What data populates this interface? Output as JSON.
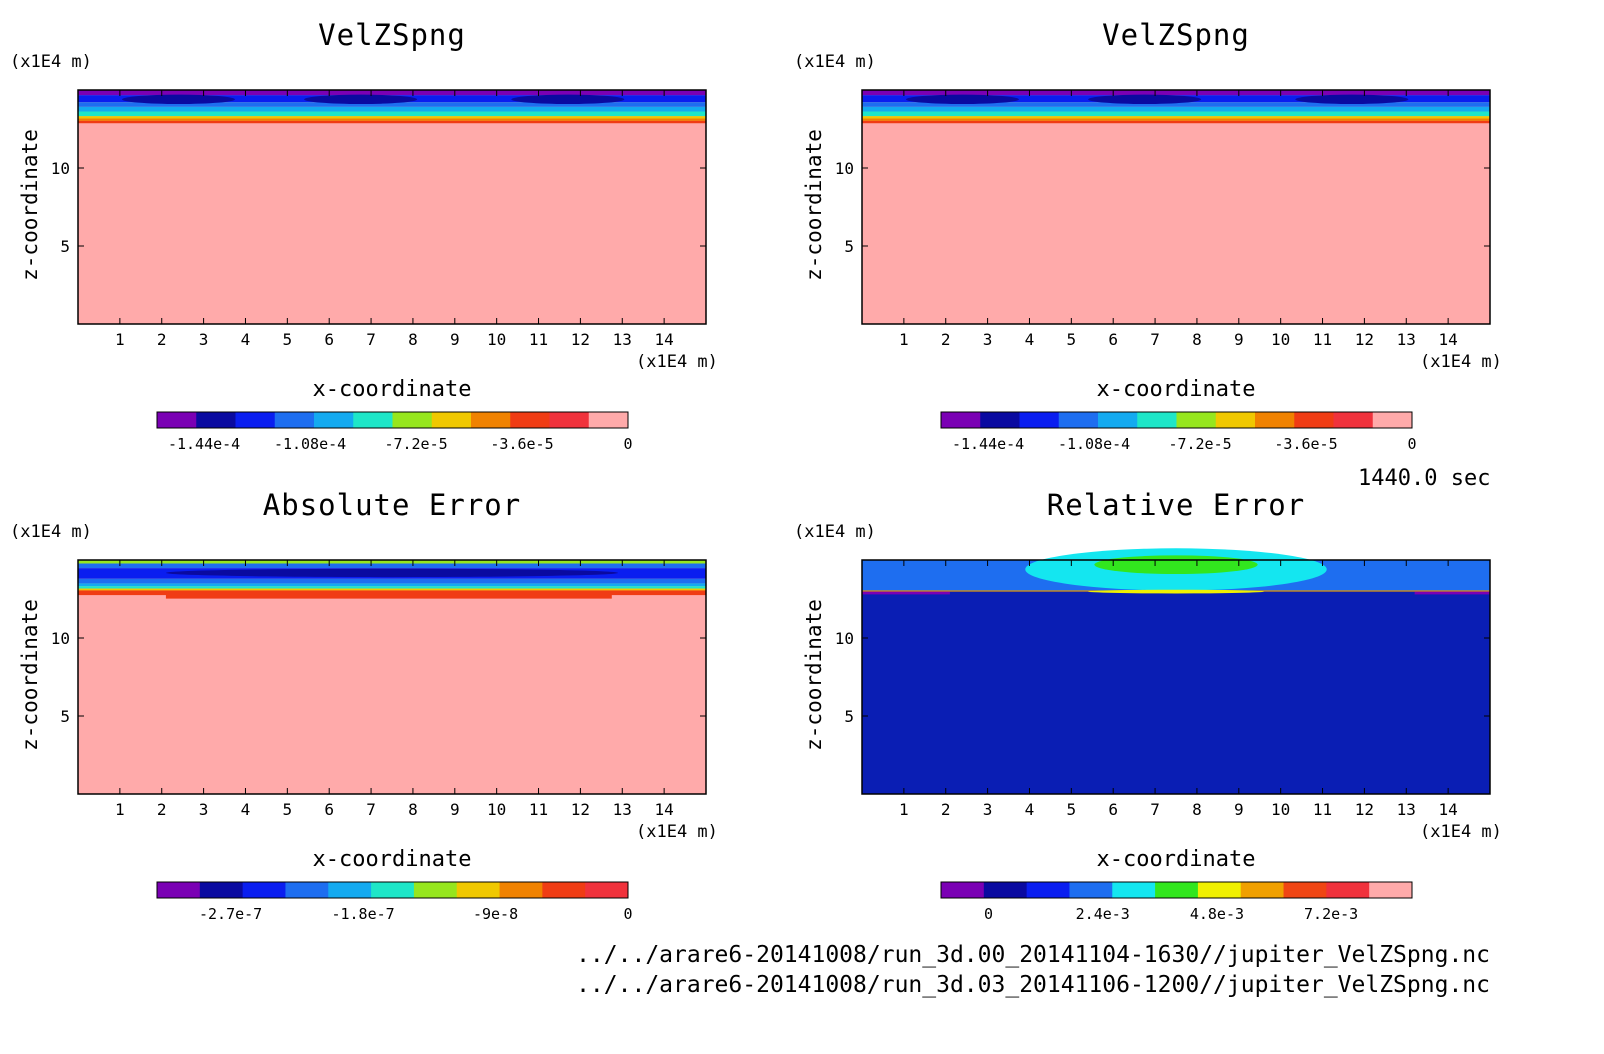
{
  "time_label": "1440.0 sec",
  "file_paths": [
    "../../arare6-20141008/run_3d.00_20141104-1630//jupiter_VelZSpng.nc",
    "../../arare6-20141008/run_3d.03_20141106-1200//jupiter_VelZSpng.nc"
  ],
  "chart_data": [
    {
      "type": "heatmap",
      "title": "VelZSpng",
      "xlabel": "x-coordinate",
      "ylabel": "z-coordinate",
      "x_unit": "(x1E4 m)",
      "y_unit": "(x1E4 m)",
      "xlim": [
        0,
        15
      ],
      "ylim": [
        0,
        15
      ],
      "x_ticks": [
        1,
        2,
        3,
        4,
        5,
        6,
        7,
        8,
        9,
        10,
        11,
        12,
        13,
        14
      ],
      "y_ticks": [
        5,
        10
      ],
      "colorbar": {
        "colors": [
          "#7a00b4",
          "#0a0aa0",
          "#0a1ef0",
          "#1e6ef0",
          "#14aaf0",
          "#1ee6c8",
          "#96e61e",
          "#f0c800",
          "#f08200",
          "#f03c14",
          "#f0323c",
          "#ffaaaa"
        ],
        "tick_labels": [
          "-1.44e-4",
          "-1.08e-4",
          "-7.2e-5",
          "-3.6e-5",
          "0"
        ],
        "tick_values": [
          -0.000144,
          -0.000108,
          -7.2e-05,
          -3.6e-05,
          0
        ],
        "range": [
          -0.00016,
          0
        ]
      },
      "background_color": "#ffaaaa"
    },
    {
      "type": "heatmap",
      "title": "VelZSpng",
      "xlabel": "x-coordinate",
      "ylabel": "z-coordinate",
      "x_unit": "(x1E4 m)",
      "y_unit": "(x1E4 m)",
      "xlim": [
        0,
        15
      ],
      "ylim": [
        0,
        15
      ],
      "x_ticks": [
        1,
        2,
        3,
        4,
        5,
        6,
        7,
        8,
        9,
        10,
        11,
        12,
        13,
        14
      ],
      "y_ticks": [
        5,
        10
      ],
      "colorbar": {
        "colors": [
          "#7a00b4",
          "#0a0aa0",
          "#0a1ef0",
          "#1e6ef0",
          "#14aaf0",
          "#1ee6c8",
          "#96e61e",
          "#f0c800",
          "#f08200",
          "#f03c14",
          "#f0323c",
          "#ffaaaa"
        ],
        "tick_labels": [
          "-1.44e-4",
          "-1.08e-4",
          "-7.2e-5",
          "-3.6e-5",
          "0"
        ],
        "tick_values": [
          -0.000144,
          -0.000108,
          -7.2e-05,
          -3.6e-05,
          0
        ],
        "range": [
          -0.00016,
          0
        ]
      },
      "background_color": "#ffaaaa"
    },
    {
      "type": "heatmap",
      "title": "Absolute Error",
      "xlabel": "x-coordinate",
      "ylabel": "z-coordinate",
      "x_unit": "(x1E4 m)",
      "y_unit": "(x1E4 m)",
      "xlim": [
        0,
        15
      ],
      "ylim": [
        0,
        15
      ],
      "x_ticks": [
        1,
        2,
        3,
        4,
        5,
        6,
        7,
        8,
        9,
        10,
        11,
        12,
        13,
        14
      ],
      "y_ticks": [
        5,
        10
      ],
      "colorbar": {
        "colors": [
          "#7a00b4",
          "#0a0aa0",
          "#0a1ef0",
          "#1e6ef0",
          "#14aaf0",
          "#1ee6c8",
          "#96e61e",
          "#f0c800",
          "#f08200",
          "#f03c14",
          "#f0323c"
        ],
        "tick_labels": [
          "-2.7e-7",
          "-1.8e-7",
          "-9e-8",
          "0"
        ],
        "tick_values": [
          -2.7e-07,
          -1.8e-07,
          -9e-08,
          0
        ],
        "range": [
          -3.2e-07,
          0
        ]
      },
      "background_color": "#ffaaaa"
    },
    {
      "type": "heatmap",
      "title": "Relative Error",
      "xlabel": "x-coordinate",
      "ylabel": "z-coordinate",
      "x_unit": "(x1E4 m)",
      "y_unit": "(x1E4 m)",
      "xlim": [
        0,
        15
      ],
      "ylim": [
        0,
        15
      ],
      "x_ticks": [
        1,
        2,
        3,
        4,
        5,
        6,
        7,
        8,
        9,
        10,
        11,
        12,
        13,
        14
      ],
      "y_ticks": [
        5,
        10
      ],
      "colorbar": {
        "colors": [
          "#7a00b4",
          "#0a0aa0",
          "#0a1ef0",
          "#1e6ef0",
          "#14e6f0",
          "#32e61e",
          "#f0f000",
          "#f0a000",
          "#f04614",
          "#f0323c",
          "#ffaaaa"
        ],
        "tick_labels": [
          "0",
          "2.4e-3",
          "4.8e-3",
          "7.2e-3"
        ],
        "tick_values": [
          0,
          0.0024,
          0.0048,
          0.0072
        ],
        "range": [
          -0.001,
          0.0089
        ]
      },
      "background_color": "#0a1eb4"
    }
  ]
}
